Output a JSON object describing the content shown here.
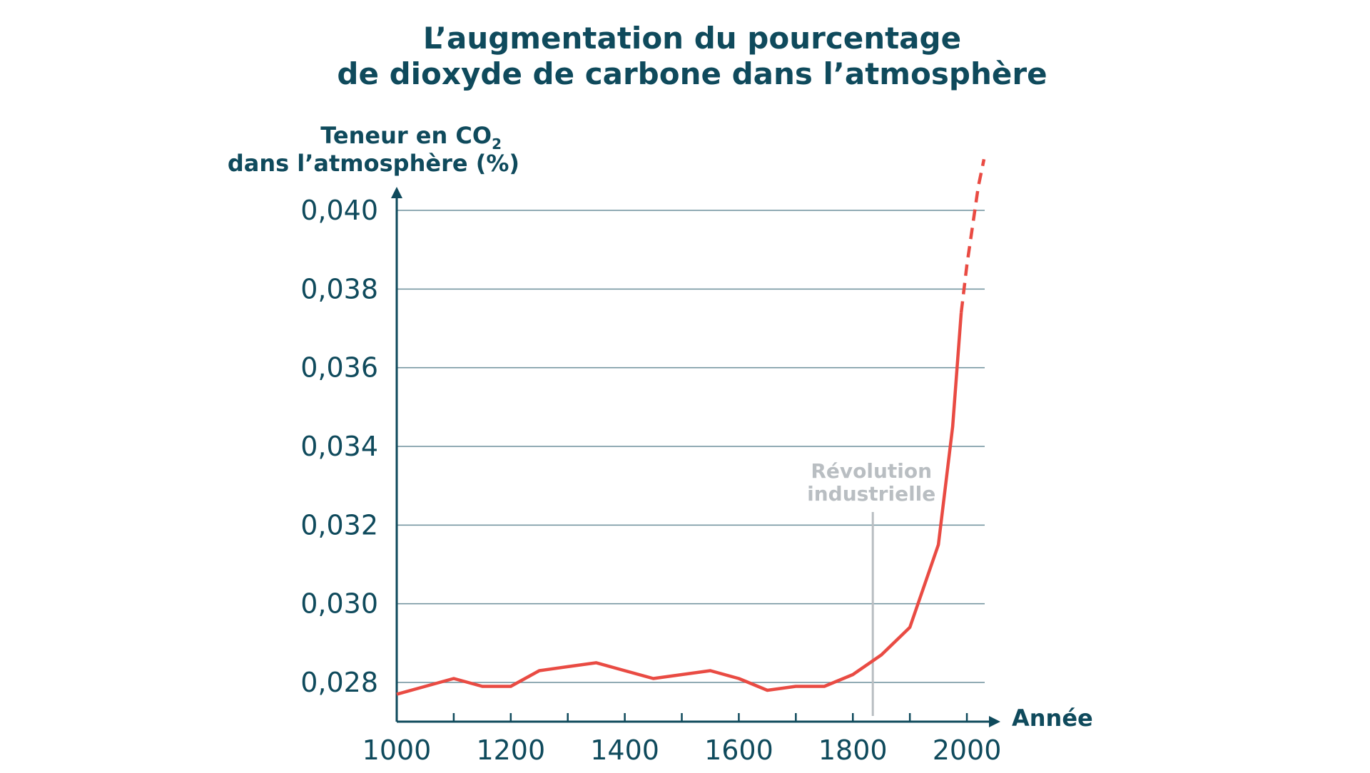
{
  "chart_data": {
    "type": "line",
    "title": [
      "L’augmentation du pourcentage",
      "de dioxyde de carbone dans l’atmosphère"
    ],
    "ylabel": {
      "line1_prefix": "Teneur en CO",
      "line1_sub": "2",
      "line2": "dans l’atmosphère (%)"
    },
    "xlabel": "Année",
    "xlim": [
      1000,
      2050
    ],
    "ylim": [
      0.027,
      0.0413
    ],
    "x_ticks": [
      1000,
      1100,
      1200,
      1300,
      1400,
      1500,
      1600,
      1700,
      1800,
      1900,
      2000
    ],
    "x_tick_labels": [
      "1000",
      "",
      "1200",
      "",
      "1400",
      "",
      "1600",
      "",
      "1800",
      "",
      "2000"
    ],
    "y_ticks": [
      0.028,
      0.03,
      0.032,
      0.034,
      0.036,
      0.038,
      0.04
    ],
    "y_tick_labels": [
      "0,028",
      "0,030",
      "0,032",
      "0,034",
      "0,036",
      "0,038",
      "0,040"
    ],
    "grid": true,
    "series": [
      {
        "color": "#e94b43",
        "style": "solid",
        "x": [
          1000,
          1050,
          1100,
          1150,
          1200,
          1250,
          1300,
          1350,
          1400,
          1450,
          1500,
          1550,
          1600,
          1650,
          1700,
          1750,
          1800,
          1850,
          1900,
          1950,
          1975,
          1990
        ],
        "y": [
          0.0277,
          0.0279,
          0.0281,
          0.0279,
          0.0279,
          0.0283,
          0.0284,
          0.0285,
          0.0283,
          0.0281,
          0.0282,
          0.0283,
          0.0281,
          0.0278,
          0.0279,
          0.0279,
          0.0282,
          0.0287,
          0.0294,
          0.0315,
          0.0345,
          0.0374
        ]
      },
      {
        "color": "#e94b43",
        "style": "dashed",
        "x": [
          1990,
          2000,
          2010,
          2020,
          2030
        ],
        "y": [
          0.0374,
          0.0386,
          0.0396,
          0.0406,
          0.0413
        ]
      }
    ],
    "annotations": [
      {
        "text": [
          "Révolution",
          "industrielle"
        ],
        "x": 1835,
        "color": "#b9bec2"
      }
    ],
    "colors": {
      "axis": "#0f4a5c",
      "grid": "#6d8f9b",
      "line": "#e94b43",
      "annotation": "#b9bec2"
    }
  }
}
